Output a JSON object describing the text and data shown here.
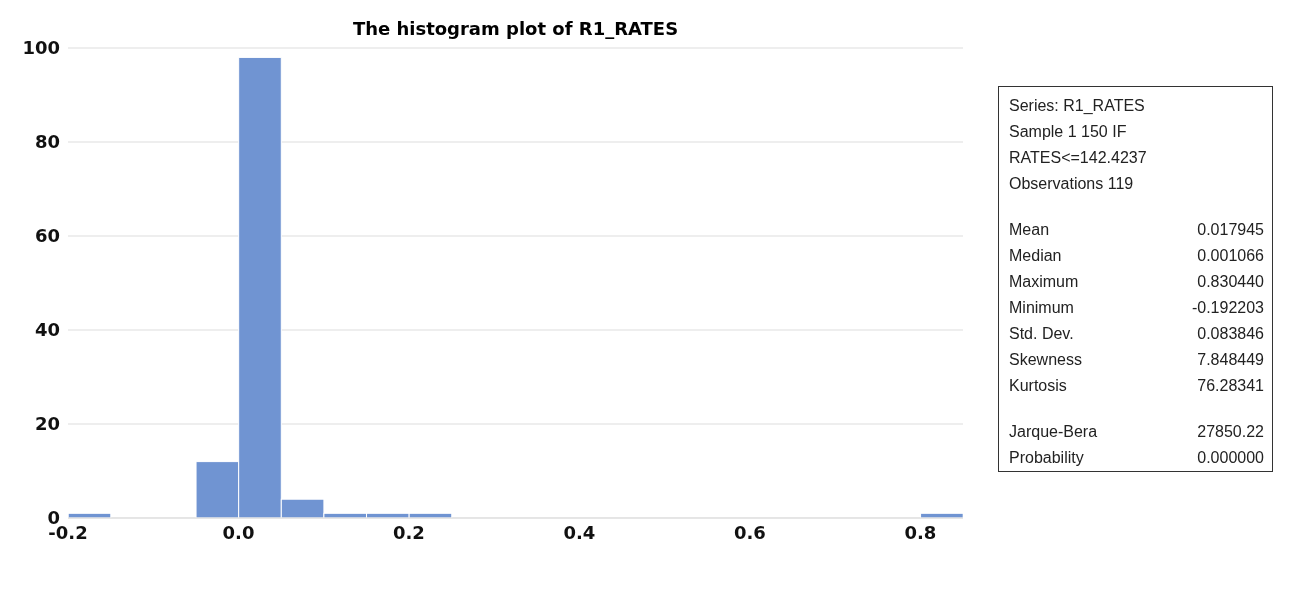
{
  "chart_data": {
    "type": "histogram",
    "title": "The histogram plot of R1_RATES",
    "bins": [
      -0.2,
      -0.15,
      -0.1,
      -0.05,
      0,
      0.05,
      0.1,
      0.15,
      0.2,
      0.25,
      0.3,
      0.35,
      0.4,
      0.45,
      0.5,
      0.55,
      0.6,
      0.65,
      0.7,
      0.75,
      0.8,
      0.85
    ],
    "values": [
      1,
      0,
      0,
      12,
      98,
      4,
      1,
      1,
      1,
      0,
      0,
      0,
      0,
      0,
      0,
      0,
      0,
      0,
      0,
      0,
      1
    ],
    "color": "#7094d2",
    "xlim": [
      -0.2,
      0.85
    ],
    "xticks": [
      -0.2,
      {
        "value": 0,
        "label": "0.0"
      },
      0.2,
      0.4,
      0.6,
      0.8
    ],
    "ylim": [
      0,
      100
    ],
    "yticks": [
      0,
      20,
      40,
      60,
      80,
      100
    ],
    "grid": "y",
    "annotations": [
      "Series: R1_RATES",
      "Sample 1 150 IF RATES<=142.4237",
      "Observations 119",
      "Mean\t0.017945",
      "Median\t0.001066",
      "Maximum\t0.830440",
      "Minimum\t-0.192203",
      "Std. Dev.\t0.083846",
      "Skewness\t7.848449",
      "Kurtosis\t76.28341",
      "Jarque-Bera\t27850.22",
      "Probability\t0.000000"
    ]
  }
}
